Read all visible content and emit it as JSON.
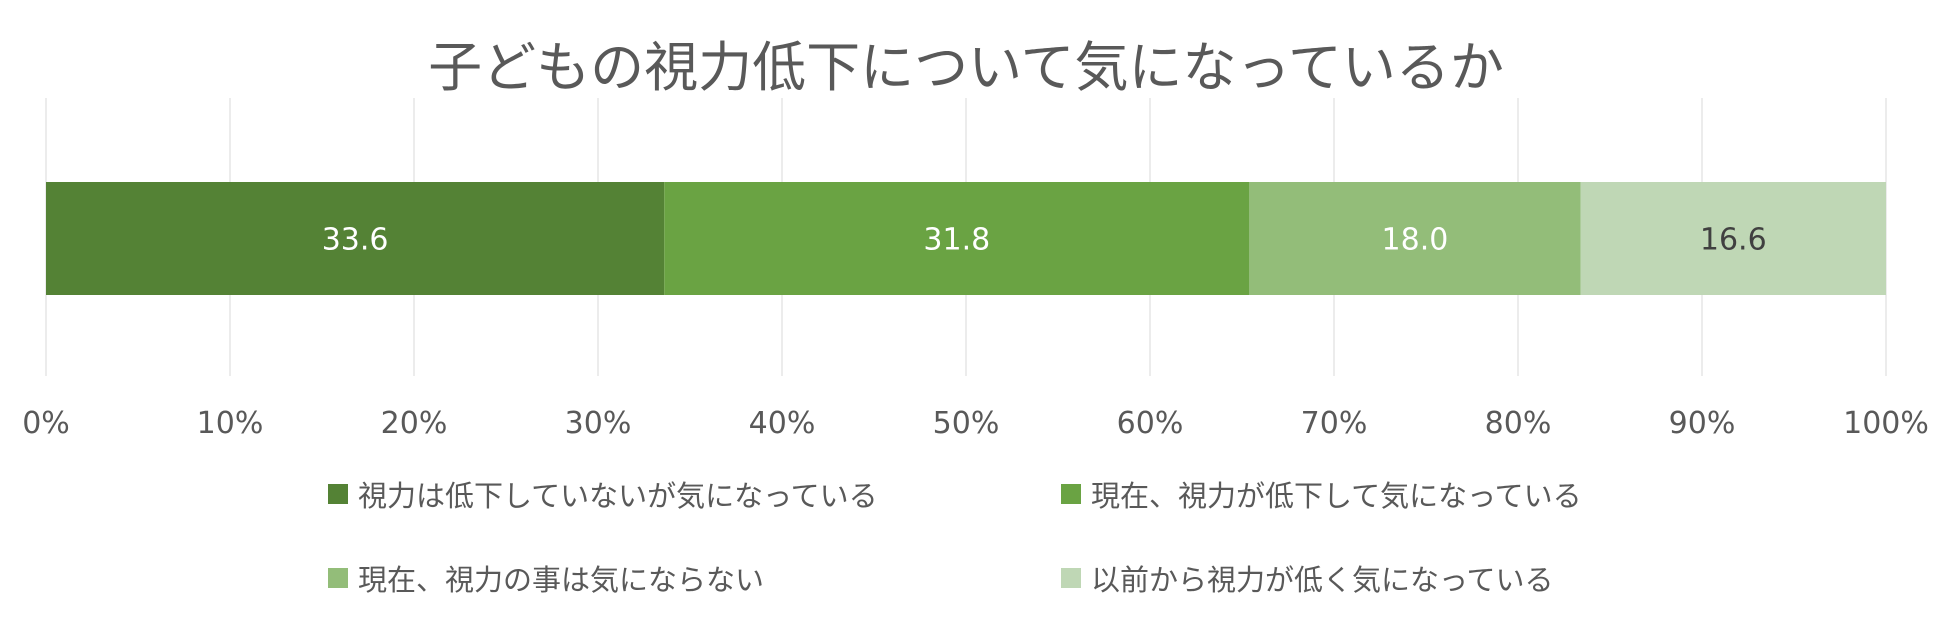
{
  "chart_data": {
    "type": "bar",
    "orientation": "horizontal",
    "stacked": true,
    "title": "子どもの視力低下について気になっているか",
    "xlabel": "",
    "ylabel": "",
    "xlim": [
      0,
      100
    ],
    "xticks": [
      0,
      10,
      20,
      30,
      40,
      50,
      60,
      70,
      80,
      90,
      100
    ],
    "xtick_labels": [
      "0%",
      "10%",
      "20%",
      "30%",
      "40%",
      "50%",
      "60%",
      "70%",
      "80%",
      "90%",
      "100%"
    ],
    "grid": true,
    "legend_position": "bottom",
    "categories": [
      ""
    ],
    "series": [
      {
        "name": "視力は低下していないが気になっている",
        "values": [
          33.6
        ],
        "label": "33.6",
        "color": "#548235",
        "label_color": "#ffffff"
      },
      {
        "name": "現在、視力が低下して気になっている",
        "values": [
          31.8
        ],
        "label": "31.8",
        "color": "#6aa343",
        "label_color": "#ffffff"
      },
      {
        "name": "現在、視力の事は気にならない",
        "values": [
          18.0
        ],
        "label": "18.0",
        "color": "#93bd79",
        "label_color": "#ffffff"
      },
      {
        "name": "以前から視力が低く気になっている",
        "values": [
          16.6
        ],
        "label": "16.6",
        "color": "#bfd7b5",
        "label_color": "#404040"
      }
    ]
  }
}
